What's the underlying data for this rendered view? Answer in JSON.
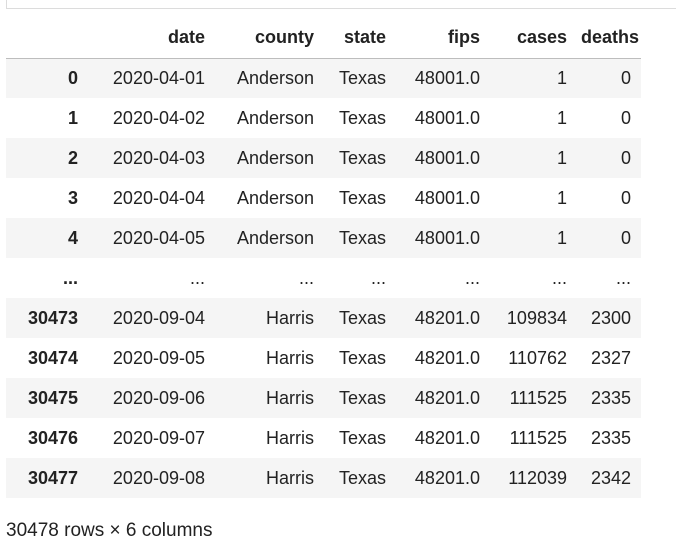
{
  "dataframe": {
    "columns": [
      "",
      "date",
      "county",
      "state",
      "fips",
      "cases",
      "deaths"
    ],
    "rows": [
      [
        "0",
        "2020-04-01",
        "Anderson",
        "Texas",
        "48001.0",
        "1",
        "0"
      ],
      [
        "1",
        "2020-04-02",
        "Anderson",
        "Texas",
        "48001.0",
        "1",
        "0"
      ],
      [
        "2",
        "2020-04-03",
        "Anderson",
        "Texas",
        "48001.0",
        "1",
        "0"
      ],
      [
        "3",
        "2020-04-04",
        "Anderson",
        "Texas",
        "48001.0",
        "1",
        "0"
      ],
      [
        "4",
        "2020-04-05",
        "Anderson",
        "Texas",
        "48001.0",
        "1",
        "0"
      ],
      [
        "...",
        "...",
        "...",
        "...",
        "...",
        "...",
        "..."
      ],
      [
        "30473",
        "2020-09-04",
        "Harris",
        "Texas",
        "48201.0",
        "109834",
        "2300"
      ],
      [
        "30474",
        "2020-09-05",
        "Harris",
        "Texas",
        "48201.0",
        "110762",
        "2327"
      ],
      [
        "30475",
        "2020-09-06",
        "Harris",
        "Texas",
        "48201.0",
        "111525",
        "2335"
      ],
      [
        "30476",
        "2020-09-07",
        "Harris",
        "Texas",
        "48201.0",
        "111525",
        "2335"
      ],
      [
        "30477",
        "2020-09-08",
        "Harris",
        "Texas",
        "48201.0",
        "112039",
        "2342"
      ]
    ],
    "shape_text": "30478 rows × 6 columns"
  }
}
